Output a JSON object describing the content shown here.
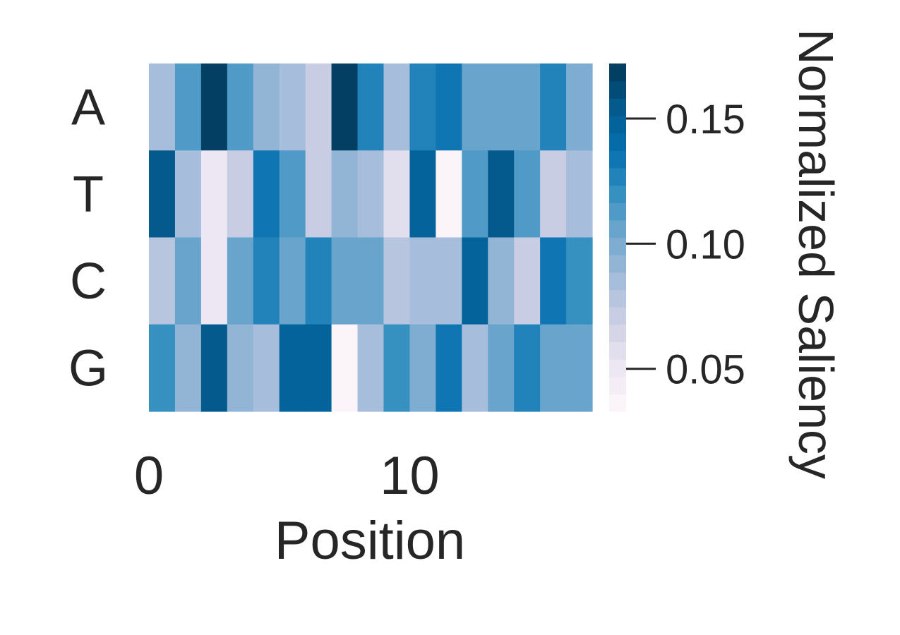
{
  "chart_data": {
    "type": "heatmap",
    "title": "",
    "xlabel": "Position",
    "ylabel": "",
    "rows": [
      "A",
      "T",
      "C",
      "G"
    ],
    "x": [
      0,
      1,
      2,
      3,
      4,
      5,
      6,
      7,
      8,
      9,
      10,
      11,
      12,
      13,
      14,
      15,
      16
    ],
    "xticks": [
      0,
      10
    ],
    "xtick_labels": [
      "0",
      "10"
    ],
    "values": [
      [
        0.088,
        0.116,
        0.168,
        0.116,
        0.094,
        0.083,
        0.073,
        0.168,
        0.13,
        0.088,
        0.13,
        0.137,
        0.103,
        0.109,
        0.103,
        0.13,
        0.099
      ],
      [
        0.155,
        0.088,
        0.048,
        0.068,
        0.137,
        0.116,
        0.068,
        0.094,
        0.088,
        0.058,
        0.15,
        0.038,
        0.116,
        0.155,
        0.116,
        0.073,
        0.088
      ],
      [
        0.078,
        0.109,
        0.048,
        0.109,
        0.13,
        0.109,
        0.13,
        0.109,
        0.109,
        0.078,
        0.088,
        0.088,
        0.15,
        0.094,
        0.073,
        0.137,
        0.123
      ],
      [
        0.123,
        0.094,
        0.155,
        0.094,
        0.088,
        0.145,
        0.15,
        0.038,
        0.088,
        0.123,
        0.099,
        0.137,
        0.088,
        0.103,
        0.13,
        0.103,
        0.109
      ]
    ],
    "colorbar": {
      "label": "Normalized Saliency",
      "vmin": 0.033,
      "vmax": 0.172,
      "ticks": [
        0.05,
        0.1,
        0.15
      ],
      "tick_labels": [
        "0.05",
        "0.10",
        "0.15"
      ],
      "colormap": "PuBu",
      "colors": [
        "#fff7fb",
        "#ece7f2",
        "#d0d1e6",
        "#a6bddb",
        "#74a9cf",
        "#3690c0",
        "#0570b0",
        "#045a8d",
        "#023858"
      ],
      "steps": 20
    },
    "grid": false
  },
  "colors": {
    "text": "#262626",
    "tick": "#262626"
  }
}
